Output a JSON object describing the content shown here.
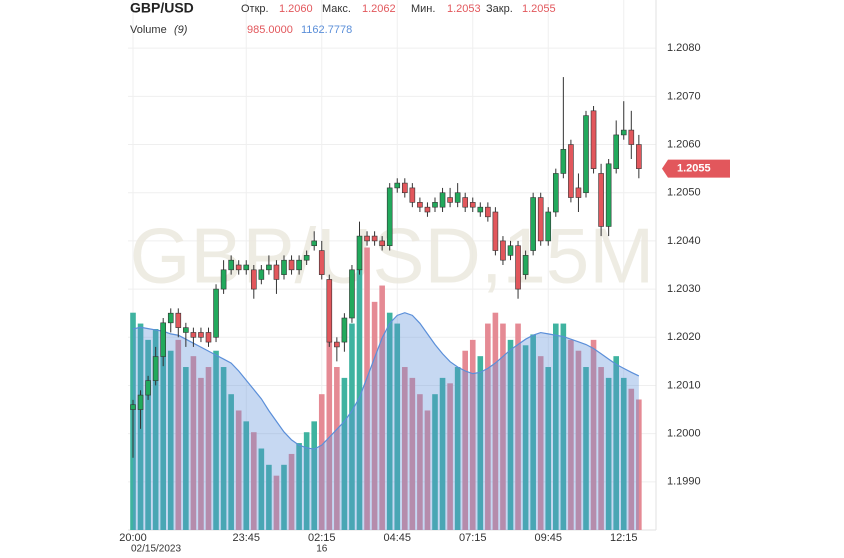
{
  "chart_data": {
    "type": "candlestick",
    "title": "GBP/USD",
    "watermark": "GBP/USD,15M",
    "header": {
      "open_label": "Откр.",
      "open": "1.2060",
      "high_label": "Макс.",
      "high": "1.2062",
      "low_label": "Мин.",
      "low": "1.2053",
      "close_label": "Закр.",
      "close": "1.2055",
      "volume_label": "Volume",
      "volume_period": "(9)",
      "volume": "985.0000",
      "volume_ma": "1162.7778"
    },
    "categories": [
      "20:00",
      null,
      null,
      null,
      null,
      null,
      null,
      null,
      null,
      null,
      null,
      null,
      null,
      null,
      null,
      "23:45",
      null,
      null,
      null,
      null,
      null,
      null,
      null,
      null,
      null,
      "02:15",
      null,
      null,
      null,
      null,
      null,
      null,
      null,
      null,
      null,
      "04:45",
      null,
      null,
      null,
      null,
      null,
      null,
      null,
      null,
      null,
      "07:15",
      null,
      null,
      null,
      null,
      null,
      null,
      null,
      null,
      null,
      "09:45",
      null,
      null,
      null,
      null,
      null,
      null,
      null,
      null,
      null,
      "12:15",
      null,
      null
    ],
    "dates": [
      "02/15/2023",
      null,
      null,
      null,
      null,
      null,
      null,
      null,
      null,
      null,
      null,
      null,
      null,
      null,
      null,
      null,
      null,
      null,
      null,
      null,
      null,
      null,
      null,
      null,
      null,
      "16",
      null,
      null,
      null,
      null,
      null,
      null,
      null,
      null,
      null,
      null,
      null,
      null,
      null,
      null,
      null,
      null,
      null,
      null,
      null,
      null,
      null,
      null,
      null,
      null,
      null,
      null,
      null,
      null,
      null,
      null,
      null,
      null,
      null,
      null,
      null,
      null,
      null,
      null,
      null,
      null,
      null,
      null
    ],
    "open": [
      1.2005,
      1.2005,
      1.2008,
      1.2011,
      1.2016,
      1.2023,
      1.2025,
      1.2021,
      1.2021,
      1.2021,
      1.2021,
      1.202,
      1.203,
      1.2034,
      1.2035,
      1.2034,
      1.2034,
      1.2032,
      1.2034,
      1.2035,
      1.2033,
      1.2036,
      1.2034,
      1.2036,
      1.2039,
      1.2038,
      1.2032,
      1.2019,
      1.2019,
      1.2024,
      1.2034,
      1.2041,
      1.2041,
      1.204,
      1.2039,
      1.2051,
      1.2052,
      1.2051,
      1.2048,
      1.2047,
      1.2047,
      1.2047,
      1.2049,
      1.2048,
      1.2049,
      1.2048,
      1.2046,
      1.2047,
      1.2046,
      1.204,
      1.2037,
      1.2039,
      1.2033,
      1.2038,
      1.2049,
      1.204,
      1.2046,
      1.2054,
      1.206,
      1.2051,
      1.205,
      1.2067,
      1.2054,
      1.2043,
      1.2055,
      1.2062,
      1.2063,
      1.206
    ],
    "high": [
      1.2007,
      1.2009,
      1.2012,
      1.2018,
      1.2024,
      1.2026,
      1.2026,
      1.2023,
      1.2022,
      1.2022,
      1.2022,
      1.2031,
      1.2036,
      1.2037,
      1.2036,
      1.2036,
      1.2035,
      1.2035,
      1.2037,
      1.2036,
      1.2037,
      1.2037,
      1.2037,
      1.2038,
      1.2042,
      1.204,
      1.2033,
      1.202,
      1.2025,
      1.2035,
      1.2044,
      1.2042,
      1.2042,
      1.2041,
      1.2052,
      1.2053,
      1.2053,
      1.2052,
      1.2049,
      1.2048,
      1.2049,
      1.2051,
      1.2051,
      1.2052,
      1.205,
      1.2049,
      1.2048,
      1.2048,
      1.2047,
      1.2041,
      1.204,
      1.204,
      1.2038,
      1.205,
      1.205,
      1.2047,
      1.2055,
      1.2074,
      1.2061,
      1.2054,
      1.2067,
      1.2068,
      1.2056,
      1.2057,
      1.2065,
      1.2069,
      1.2067,
      1.2062
    ],
    "low": [
      1.1995,
      1.2001,
      1.2007,
      1.201,
      1.2014,
      1.2021,
      1.202,
      1.2018,
      1.2018,
      1.2019,
      1.2018,
      1.2019,
      1.2029,
      1.2033,
      1.2033,
      1.2033,
      1.2028,
      1.2031,
      1.2033,
      1.2029,
      1.2032,
      1.2033,
      1.2033,
      1.2035,
      1.2038,
      1.2032,
      1.2018,
      1.2015,
      1.2017,
      1.2023,
      1.2033,
      1.2039,
      1.2039,
      1.2038,
      1.2038,
      1.205,
      1.2049,
      1.2047,
      1.2046,
      1.2045,
      1.2046,
      1.2046,
      1.2047,
      1.2047,
      1.2046,
      1.2046,
      1.2045,
      1.2044,
      1.2037,
      1.2035,
      1.2036,
      1.2028,
      1.2032,
      1.2037,
      1.2039,
      1.2039,
      1.2045,
      1.2053,
      1.2048,
      1.2046,
      1.2049,
      1.2054,
      1.2041,
      1.2041,
      1.2054,
      1.2061,
      1.2057,
      1.2053
    ],
    "close": [
      1.2006,
      1.2008,
      1.2011,
      1.2016,
      1.2023,
      1.2025,
      1.2022,
      1.2022,
      1.202,
      1.202,
      1.2019,
      1.203,
      1.2034,
      1.2036,
      1.2034,
      1.2035,
      1.203,
      1.2034,
      1.2035,
      1.2032,
      1.2036,
      1.2034,
      1.2036,
      1.2037,
      1.204,
      1.2033,
      1.2019,
      1.2018,
      1.2024,
      1.2034,
      1.2041,
      1.204,
      1.204,
      1.2039,
      1.2051,
      1.2052,
      1.205,
      1.2048,
      1.2047,
      1.2046,
      1.2048,
      1.205,
      1.2048,
      1.205,
      1.2047,
      1.2047,
      1.2047,
      1.2045,
      1.2038,
      1.2036,
      1.2039,
      1.203,
      1.2037,
      1.2049,
      1.204,
      1.2046,
      1.2054,
      1.2059,
      1.2049,
      1.2049,
      1.2066,
      1.2055,
      1.2043,
      1.2056,
      1.2062,
      1.2063,
      1.206,
      1.2055
    ],
    "volumes": [
      1640,
      1558,
      1435,
      1517,
      1558,
      1353,
      1435,
      1230,
      1312,
      1148,
      1230,
      1353,
      1230,
      1025,
      902,
      820,
      738,
      615,
      492,
      410,
      492,
      574,
      656,
      738,
      820,
      1025,
      1435,
      1230,
      1148,
      1558,
      1968,
      2132,
      1722,
      1845,
      1640,
      1558,
      1230,
      1148,
      1025,
      902,
      1025,
      1148,
      1107,
      1230,
      1353,
      1435,
      1312,
      1558,
      1640,
      1558,
      1435,
      1558,
      1394,
      1476,
      1312,
      1230,
      1558,
      1558,
      1435,
      1353,
      1230,
      1435,
      1230,
      1148,
      1312,
      1148,
      1066,
      985
    ],
    "volume_ma": [
      1517,
      1530,
      1520,
      1510,
      1500,
      1480,
      1470,
      1440,
      1410,
      1380,
      1350,
      1320,
      1290,
      1260,
      1200,
      1130,
      1060,
      990,
      900,
      820,
      740,
      680,
      640,
      620,
      610,
      640,
      700,
      760,
      820,
      900,
      1000,
      1150,
      1300,
      1450,
      1560,
      1620,
      1640,
      1620,
      1560,
      1480,
      1400,
      1330,
      1270,
      1230,
      1200,
      1180,
      1190,
      1220,
      1260,
      1310,
      1360,
      1400,
      1440,
      1470,
      1490,
      1480,
      1470,
      1460,
      1440,
      1420,
      1400,
      1370,
      1330,
      1290,
      1250,
      1220,
      1190,
      1162.7778
    ],
    "volume_ylim": [
      0,
      4000
    ],
    "up_color": "#22a95c",
    "down_color": "#e2575c",
    "volume_up_color": "#3fb3a0",
    "volume_down_color": "#e58a94",
    "ma_color": "#5b8fd9",
    "ylim": [
      1.198,
      1.209
    ],
    "yticks": [
      {
        "value": 1.199,
        "label": "1.1990"
      },
      {
        "value": 1.2,
        "label": "1.2000"
      },
      {
        "value": 1.201,
        "label": "1.2010"
      },
      {
        "value": 1.202,
        "label": "1.2020"
      },
      {
        "value": 1.203,
        "label": "1.2030"
      },
      {
        "value": 1.204,
        "label": "1.2040"
      },
      {
        "value": 1.205,
        "label": "1.2050"
      },
      {
        "value": 1.206,
        "label": "1.2060"
      },
      {
        "value": 1.207,
        "label": "1.2070"
      },
      {
        "value": 1.208,
        "label": "1.2080"
      }
    ],
    "last_price": {
      "value": 1.2055,
      "label": "1.2055"
    },
    "grid": true
  }
}
